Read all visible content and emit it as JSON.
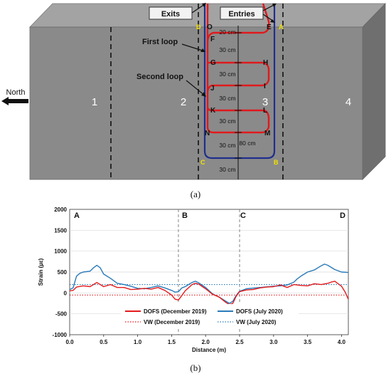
{
  "diagram": {
    "caption": "(a)",
    "direction_label": "North",
    "boxes": {
      "exits": "Exits",
      "entries": "Entries"
    },
    "loop_labels": {
      "first": "First loop",
      "second": "Second loop"
    },
    "lane_numbers": [
      "1",
      "2",
      "3",
      "4"
    ],
    "corner_letters": {
      "A": "A",
      "B": "B",
      "C": "C",
      "D": "D"
    },
    "node_letters": [
      "O",
      "E",
      "F",
      "G",
      "H",
      "J",
      "I",
      "K",
      "L",
      "N",
      "M"
    ],
    "dimensions": [
      "20 cm",
      "30 cm",
      "30 cm",
      "30 cm",
      "30 cm",
      "30 cm",
      "80 cm",
      "30 cm"
    ],
    "colors": {
      "slab": "#888888",
      "fiber": "#e0191d",
      "cable": "#1f2f8c",
      "letters_yellow": "#f2e400"
    }
  },
  "chart": {
    "caption": "(b)",
    "section_letters": [
      "A",
      "B",
      "C",
      "D"
    ],
    "colors": {
      "dofs_dec": "#e41a1c",
      "dofs_jul": "#2a7ab9",
      "vw_dec": "#e41a1c",
      "vw_jul": "#2a7ab9"
    }
  },
  "chart_data": {
    "type": "line",
    "title": "",
    "xlabel": "Distance (m)",
    "ylabel": "Strain (µε)",
    "xlim": [
      0,
      4.1
    ],
    "ylim": [
      -1000,
      2000
    ],
    "xticks": [
      "0.0",
      "0.5",
      "1.0",
      "1.5",
      "2.0",
      "2.5",
      "3.0",
      "3.5",
      "4.0"
    ],
    "xtick_values": [
      0,
      0.5,
      1.0,
      1.5,
      2.0,
      2.5,
      3.0,
      3.5,
      4.0
    ],
    "yticks": [
      "2000",
      "1500",
      "1000",
      "500",
      "0",
      "-500",
      "-1000"
    ],
    "ytick_values": [
      2000,
      1500,
      1000,
      500,
      0,
      -500,
      -1000
    ],
    "vertical_lines": [
      1.6,
      2.5
    ],
    "legend_position": "bottom-center",
    "series": [
      {
        "name": "DOFS (December 2019)",
        "style": "solid",
        "x": [
          0,
          0.05,
          0.1,
          0.2,
          0.3,
          0.4,
          0.5,
          0.6,
          0.7,
          0.8,
          0.9,
          1.0,
          1.1,
          1.2,
          1.3,
          1.4,
          1.5,
          1.55,
          1.6,
          1.65,
          1.7,
          1.8,
          1.85,
          1.9,
          2.0,
          2.1,
          2.2,
          2.3,
          2.35,
          2.4,
          2.45,
          2.5,
          2.6,
          2.7,
          2.8,
          2.9,
          3.0,
          3.1,
          3.2,
          3.3,
          3.4,
          3.5,
          3.6,
          3.7,
          3.8,
          3.85,
          3.9,
          4.0,
          4.05,
          4.1
        ],
        "y": [
          50,
          60,
          140,
          170,
          150,
          250,
          150,
          200,
          130,
          130,
          80,
          90,
          110,
          90,
          130,
          60,
          -50,
          -150,
          -170,
          -60,
          50,
          200,
          230,
          210,
          100,
          -30,
          -100,
          -230,
          -280,
          -250,
          -80,
          30,
          70,
          80,
          120,
          140,
          150,
          190,
          130,
          200,
          180,
          170,
          220,
          200,
          230,
          260,
          280,
          160,
          30,
          -150
        ]
      },
      {
        "name": "DOFS (July 2020)",
        "style": "solid",
        "x": [
          0,
          0.05,
          0.1,
          0.15,
          0.2,
          0.3,
          0.35,
          0.4,
          0.45,
          0.5,
          0.6,
          0.7,
          0.8,
          0.9,
          1.0,
          1.1,
          1.2,
          1.3,
          1.4,
          1.5,
          1.55,
          1.6,
          1.65,
          1.7,
          1.8,
          1.85,
          1.9,
          2.0,
          2.1,
          2.2,
          2.3,
          2.35,
          2.4,
          2.45,
          2.5,
          2.6,
          2.8,
          3.0,
          3.1,
          3.2,
          3.3,
          3.35,
          3.4,
          3.5,
          3.6,
          3.7,
          3.75,
          3.8,
          3.9,
          4.0,
          4.1
        ],
        "y": [
          80,
          120,
          400,
          470,
          500,
          520,
          600,
          660,
          600,
          450,
          350,
          230,
          200,
          160,
          110,
          100,
          130,
          170,
          120,
          60,
          20,
          30,
          120,
          150,
          250,
          280,
          240,
          130,
          -20,
          -100,
          -200,
          -250,
          -200,
          -60,
          40,
          100,
          130,
          160,
          170,
          190,
          260,
          340,
          400,
          500,
          550,
          650,
          690,
          660,
          560,
          500,
          490
        ]
      },
      {
        "name": "VW (December 2019)",
        "style": "dotted",
        "x": [
          0,
          4.1
        ],
        "y": [
          -50,
          -50
        ]
      },
      {
        "name": "VW (July 2020)",
        "style": "dotted",
        "x": [
          0,
          4.1
        ],
        "y": [
          200,
          200
        ]
      }
    ]
  }
}
